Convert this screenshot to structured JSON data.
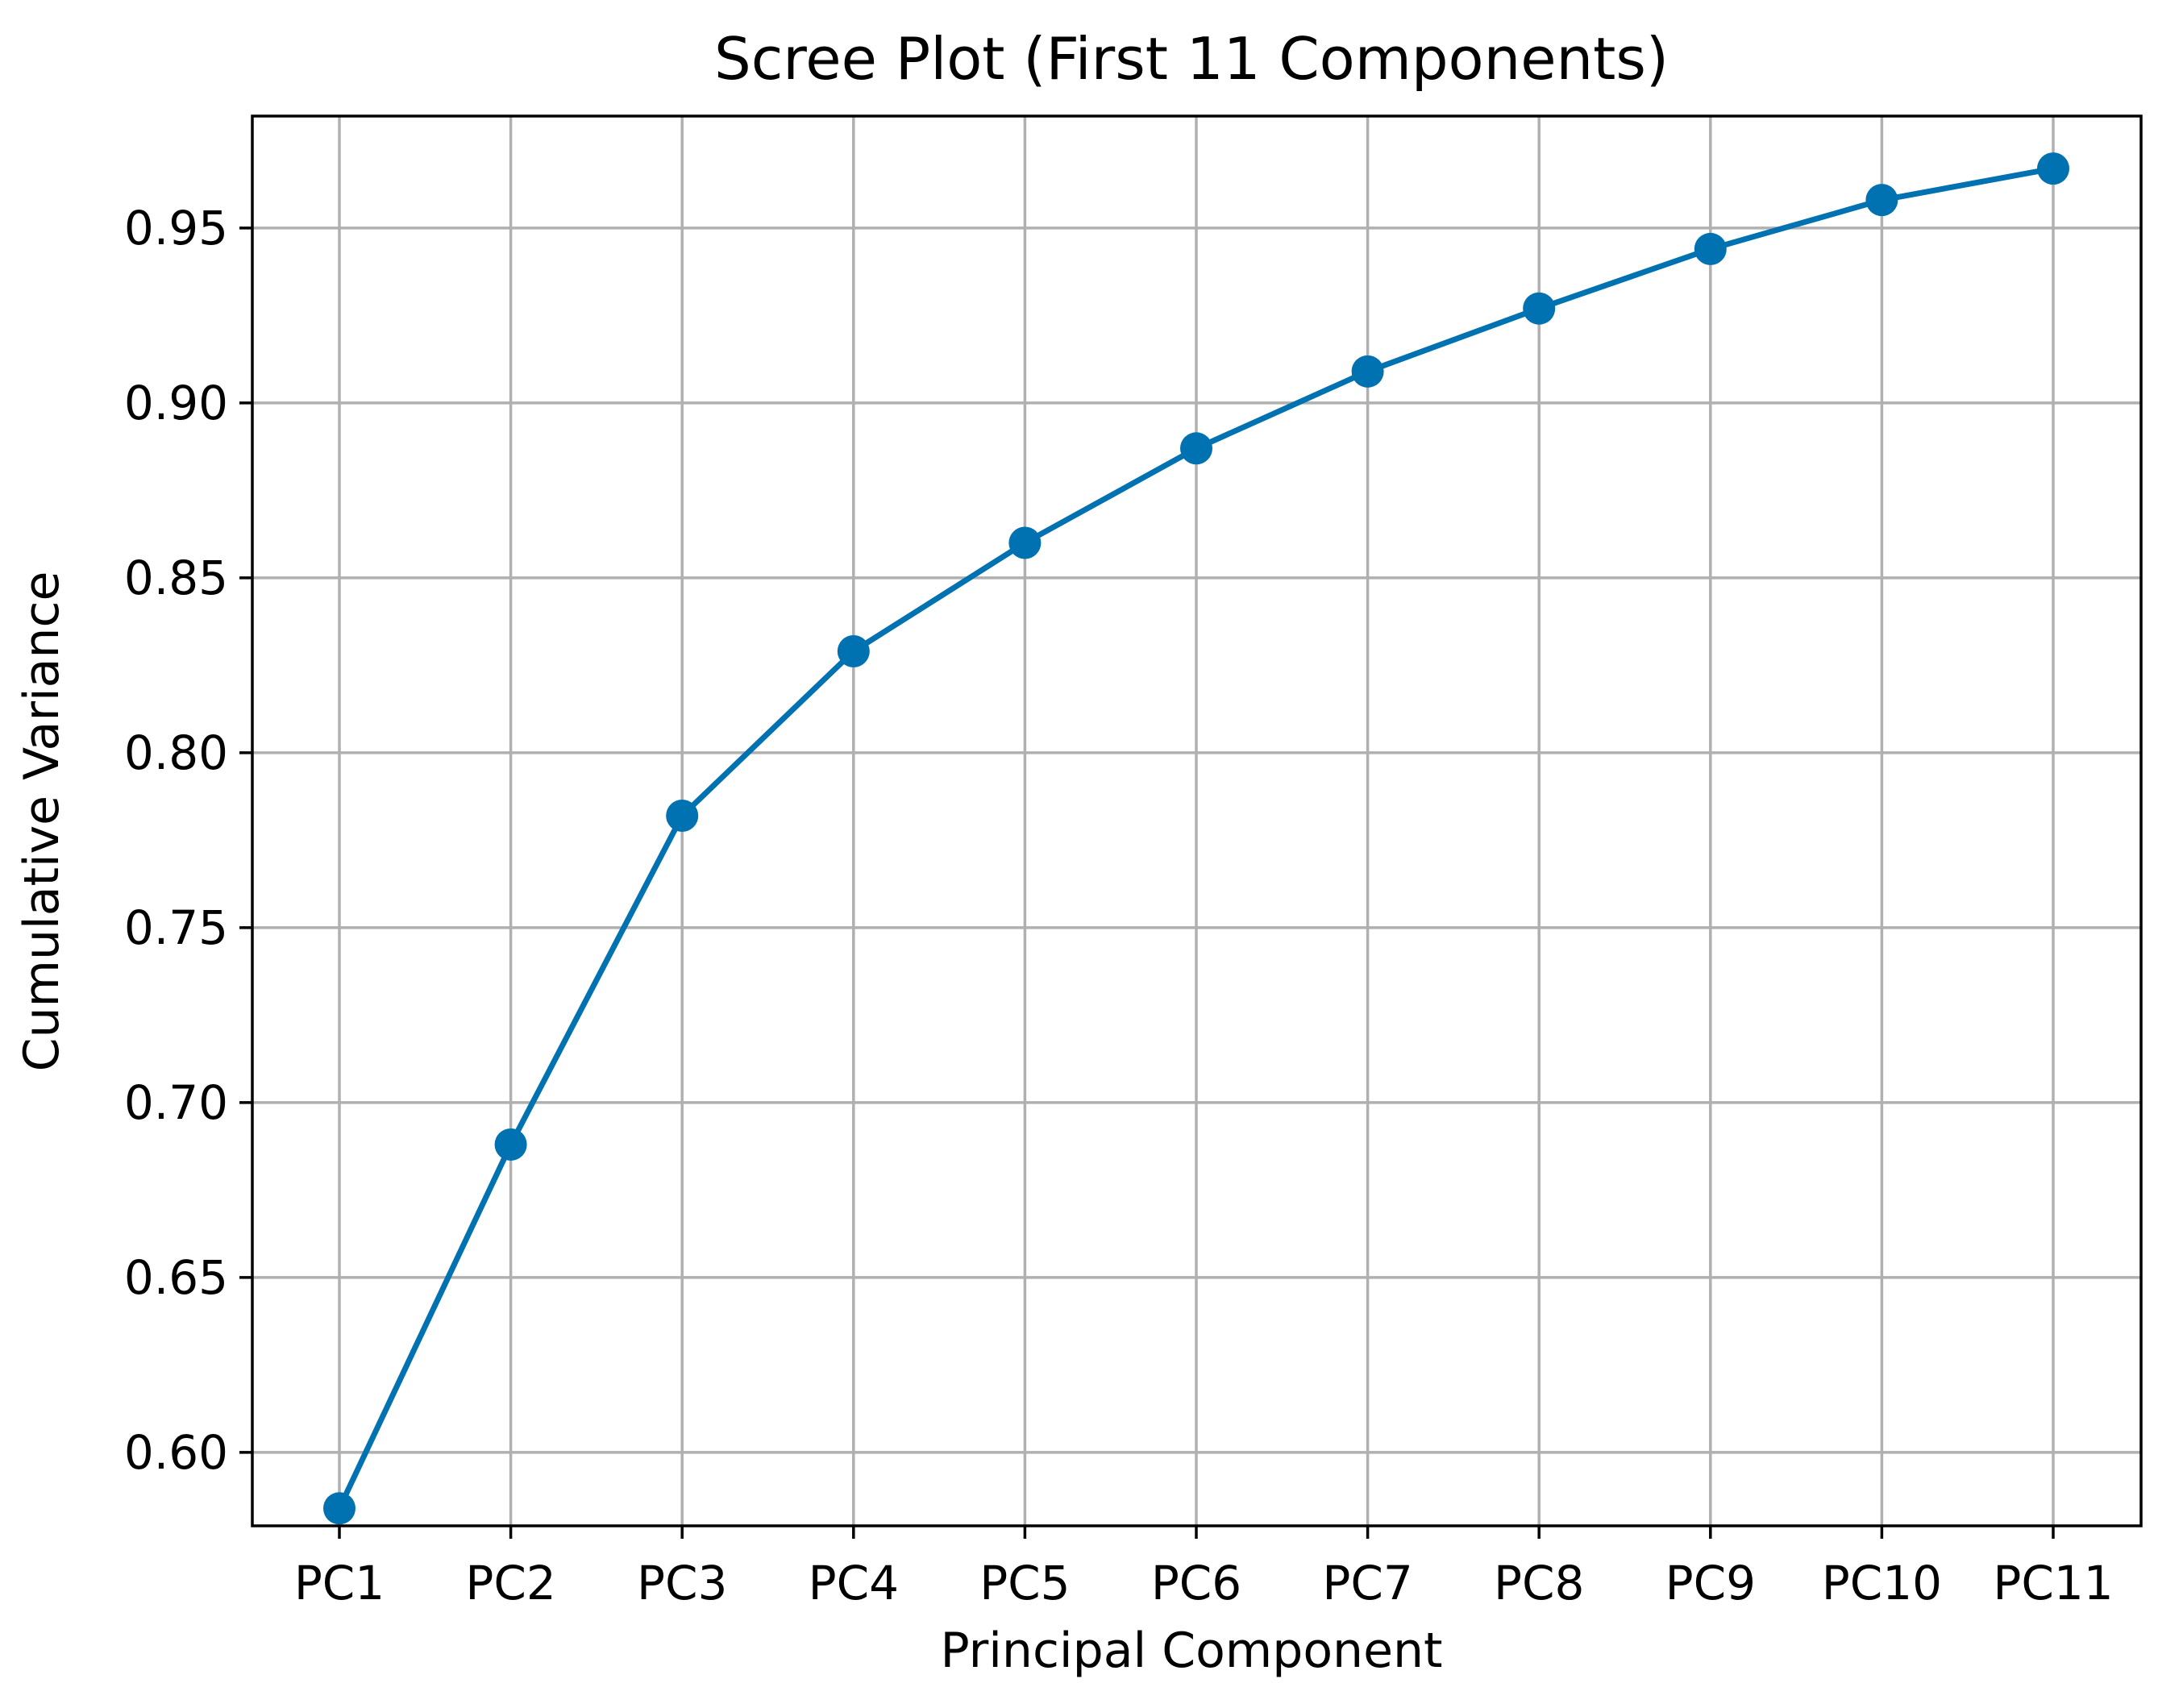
{
  "chart_data": {
    "type": "line",
    "title": "Scree Plot (First 11 Components)",
    "xlabel": "Principal Component",
    "ylabel": "Cumulative Variance",
    "categories": [
      "PC1",
      "PC2",
      "PC3",
      "PC4",
      "PC5",
      "PC6",
      "PC7",
      "PC8",
      "PC9",
      "PC10",
      "PC11"
    ],
    "series": [
      {
        "values": [
          0.584,
          0.688,
          0.782,
          0.829,
          0.86,
          0.887,
          0.909,
          0.927,
          0.944,
          0.958,
          0.967
        ],
        "color": "#0072b2",
        "marker": "circle"
      }
    ],
    "ylim": [
      0.579,
      0.982
    ],
    "yticks": [
      0.6,
      0.65,
      0.7,
      0.75,
      0.8,
      0.85,
      0.9,
      0.95
    ],
    "ytick_labels": [
      "0.60",
      "0.65",
      "0.70",
      "0.75",
      "0.80",
      "0.85",
      "0.90",
      "0.95"
    ],
    "grid": true,
    "legend": "none"
  }
}
